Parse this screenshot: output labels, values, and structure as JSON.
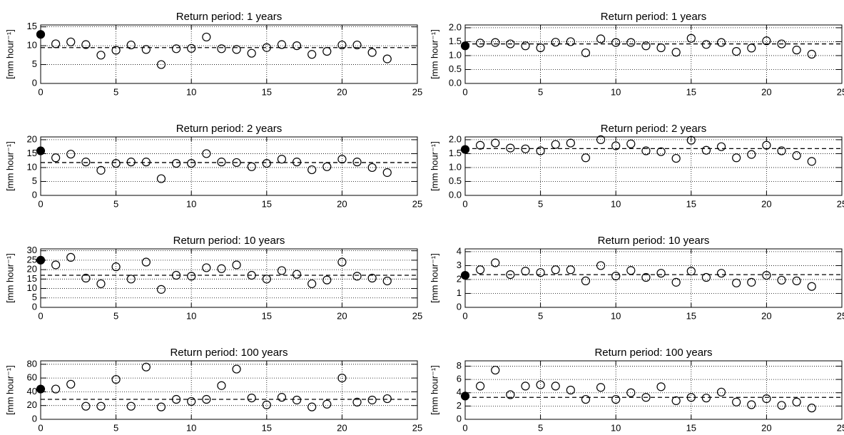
{
  "chart_data": [
    {
      "type": "scatter",
      "title": "Return period:  1 years",
      "ylabel": "[mm hour⁻¹]",
      "xlim": [
        0,
        25
      ],
      "xticks": [
        0,
        5,
        10,
        15,
        20,
        25
      ],
      "ylim": [
        0,
        15.5
      ],
      "yticks": [
        0,
        5,
        10,
        15
      ],
      "grid": true,
      "hline": 9.5,
      "series": [
        {
          "color": "#000000",
          "filled": true,
          "x": [
            0
          ],
          "values": [
            13
          ]
        },
        {
          "color": "#000000",
          "filled": false,
          "x": [
            1,
            2,
            3,
            4,
            5,
            6,
            7,
            8,
            9,
            10,
            11,
            12,
            13,
            14,
            15,
            16,
            17,
            18,
            19,
            20,
            21,
            22,
            23
          ],
          "values": [
            10.5,
            11,
            10.3,
            7.5,
            8.8,
            10.2,
            9,
            5,
            9.2,
            9.3,
            12.3,
            9.2,
            9,
            8,
            9.5,
            10.3,
            10,
            7.7,
            8.5,
            10.2,
            10.2,
            8.2,
            6.5
          ]
        }
      ]
    },
    {
      "type": "scatter",
      "title": "Return period:  1 years",
      "ylabel": "[mm hour⁻¹]",
      "xlim": [
        0,
        25
      ],
      "xticks": [
        0,
        5,
        10,
        15,
        20,
        25
      ],
      "ylim": [
        0,
        2.1
      ],
      "yticks": [
        {
          "value": 0,
          "label": "0.0"
        },
        0.5,
        {
          "value": 1,
          "label": "1.0"
        },
        1.5,
        {
          "value": 2,
          "label": "2.0"
        }
      ],
      "grid": true,
      "hline": 1.42,
      "series": [
        {
          "color": "#000000",
          "filled": true,
          "x": [
            0
          ],
          "values": [
            1.35
          ]
        },
        {
          "color": "#000000",
          "filled": false,
          "x": [
            1,
            2,
            3,
            4,
            5,
            6,
            7,
            8,
            9,
            10,
            11,
            12,
            13,
            14,
            15,
            16,
            17,
            18,
            19,
            20,
            21,
            22,
            23
          ],
          "values": [
            1.45,
            1.47,
            1.42,
            1.35,
            1.28,
            1.48,
            1.5,
            1.1,
            1.6,
            1.47,
            1.47,
            1.35,
            1.28,
            1.12,
            1.62,
            1.4,
            1.47,
            1.15,
            1.27,
            1.53,
            1.42,
            1.2,
            1.05
          ]
        }
      ]
    },
    {
      "type": "scatter",
      "title": "Return period:  2 years",
      "ylabel": "[mm hour⁻¹]",
      "xlim": [
        0,
        25
      ],
      "xticks": [
        0,
        5,
        10,
        15,
        20,
        25
      ],
      "ylim": [
        0,
        21
      ],
      "yticks": [
        0,
        5,
        10,
        15,
        20
      ],
      "grid": true,
      "hline": 11.8,
      "series": [
        {
          "color": "#000000",
          "filled": true,
          "x": [
            0
          ],
          "values": [
            16
          ]
        },
        {
          "color": "#000000",
          "filled": false,
          "x": [
            1,
            2,
            3,
            4,
            5,
            6,
            7,
            8,
            9,
            10,
            11,
            12,
            13,
            14,
            15,
            16,
            17,
            18,
            19,
            20,
            21,
            22,
            23
          ],
          "values": [
            13.5,
            14.8,
            12,
            9,
            11.5,
            12,
            12,
            6,
            11.5,
            11.5,
            15,
            12,
            11.8,
            10.3,
            11.5,
            13,
            12,
            9.2,
            10.3,
            13,
            12,
            10,
            8.2
          ]
        }
      ]
    },
    {
      "type": "scatter",
      "title": "Return period:  2 years",
      "ylabel": "[mm hour⁻¹]",
      "xlim": [
        0,
        25
      ],
      "xticks": [
        0,
        5,
        10,
        15,
        20,
        25
      ],
      "ylim": [
        0,
        2.1
      ],
      "yticks": [
        {
          "value": 0,
          "label": "0.0"
        },
        0.5,
        {
          "value": 1,
          "label": "1.0"
        },
        1.5,
        {
          "value": 2,
          "label": "2.0"
        }
      ],
      "grid": true,
      "hline": 1.68,
      "series": [
        {
          "color": "#000000",
          "filled": true,
          "x": [
            0
          ],
          "values": [
            1.65
          ]
        },
        {
          "color": "#000000",
          "filled": false,
          "x": [
            1,
            2,
            3,
            4,
            5,
            6,
            7,
            8,
            9,
            10,
            11,
            12,
            13,
            14,
            15,
            16,
            17,
            18,
            19,
            20,
            21,
            22,
            23
          ],
          "values": [
            1.8,
            1.88,
            1.7,
            1.67,
            1.6,
            1.83,
            1.88,
            1.35,
            2.0,
            1.78,
            1.85,
            1.6,
            1.57,
            1.33,
            1.98,
            1.62,
            1.75,
            1.35,
            1.47,
            1.8,
            1.6,
            1.43,
            1.22
          ]
        }
      ]
    },
    {
      "type": "scatter",
      "title": "Return period: 10 years",
      "ylabel": "[mm hour⁻¹]",
      "xlim": [
        0,
        25
      ],
      "xticks": [
        0,
        5,
        10,
        15,
        20,
        25
      ],
      "ylim": [
        0,
        31
      ],
      "yticks": [
        0,
        5,
        10,
        15,
        20,
        25,
        30
      ],
      "grid": true,
      "hline": 17,
      "series": [
        {
          "color": "#000000",
          "filled": true,
          "x": [
            0
          ],
          "values": [
            25
          ]
        },
        {
          "color": "#000000",
          "filled": false,
          "x": [
            1,
            2,
            3,
            4,
            5,
            6,
            7,
            8,
            9,
            10,
            11,
            12,
            13,
            14,
            15,
            16,
            17,
            18,
            19,
            20,
            21,
            22,
            23
          ],
          "values": [
            22.5,
            26.5,
            15.5,
            12.5,
            21.5,
            15,
            24,
            9.5,
            17,
            16.5,
            21,
            20.5,
            22.5,
            17,
            15,
            19.5,
            17.5,
            12.5,
            14.5,
            24,
            16.5,
            15.5,
            14
          ]
        }
      ]
    },
    {
      "type": "scatter",
      "title": "Return period: 10 years",
      "ylabel": "[mm hour⁻¹]",
      "xlim": [
        0,
        25
      ],
      "xticks": [
        0,
        5,
        10,
        15,
        20,
        25
      ],
      "ylim": [
        0,
        4.2
      ],
      "yticks": [
        0,
        1,
        2,
        3,
        4
      ],
      "grid": true,
      "hline": 2.35,
      "series": [
        {
          "color": "#000000",
          "filled": true,
          "x": [
            0
          ],
          "values": [
            2.3
          ]
        },
        {
          "color": "#000000",
          "filled": false,
          "x": [
            1,
            2,
            3,
            4,
            5,
            6,
            7,
            8,
            9,
            10,
            11,
            12,
            13,
            14,
            15,
            16,
            17,
            18,
            19,
            20,
            21,
            22,
            23
          ],
          "values": [
            2.7,
            3.2,
            2.35,
            2.6,
            2.5,
            2.7,
            2.7,
            1.9,
            3.0,
            2.25,
            2.65,
            2.15,
            2.45,
            1.8,
            2.6,
            2.15,
            2.45,
            1.75,
            1.8,
            2.3,
            1.95,
            1.9,
            1.5
          ]
        }
      ]
    },
    {
      "type": "scatter",
      "title": "Return period: 100 years",
      "ylabel": "[mm hour⁻¹]",
      "xlim": [
        0,
        25
      ],
      "xticks": [
        0,
        5,
        10,
        15,
        20,
        25
      ],
      "ylim": [
        0,
        85
      ],
      "yticks": [
        0,
        20,
        40,
        60,
        80
      ],
      "grid": true,
      "hline": 29,
      "series": [
        {
          "color": "#000000",
          "filled": true,
          "x": [
            0
          ],
          "values": [
            44
          ]
        },
        {
          "color": "#000000",
          "filled": false,
          "x": [
            1,
            2,
            3,
            4,
            5,
            6,
            7,
            8,
            9,
            10,
            11,
            12,
            13,
            14,
            15,
            16,
            17,
            18,
            19,
            20,
            21,
            22,
            23
          ],
          "values": [
            44,
            51,
            19,
            19,
            58,
            19,
            76,
            18,
            29,
            26,
            29,
            49,
            73,
            31,
            21,
            32,
            28,
            18,
            22,
            60,
            25,
            28,
            30
          ]
        }
      ]
    },
    {
      "type": "scatter",
      "title": "Return period: 100 years",
      "ylabel": "[mm hour⁻¹]",
      "xlim": [
        0,
        25
      ],
      "xticks": [
        0,
        5,
        10,
        15,
        20,
        25
      ],
      "ylim": [
        0,
        8.8
      ],
      "yticks": [
        0,
        2,
        4,
        6,
        8
      ],
      "grid": true,
      "hline": 3.3,
      "series": [
        {
          "color": "#000000",
          "filled": true,
          "x": [
            0
          ],
          "values": [
            3.5
          ]
        },
        {
          "color": "#000000",
          "filled": false,
          "x": [
            1,
            2,
            3,
            4,
            5,
            6,
            7,
            8,
            9,
            10,
            11,
            12,
            13,
            14,
            15,
            16,
            17,
            18,
            19,
            20,
            21,
            22,
            23
          ],
          "values": [
            5,
            7.4,
            3.7,
            5,
            5.2,
            5,
            4.4,
            3,
            4.8,
            3,
            4,
            3.3,
            4.9,
            2.8,
            3.3,
            3.2,
            4.1,
            2.6,
            2.2,
            3.1,
            2.1,
            2.6,
            1.7
          ]
        }
      ]
    }
  ]
}
